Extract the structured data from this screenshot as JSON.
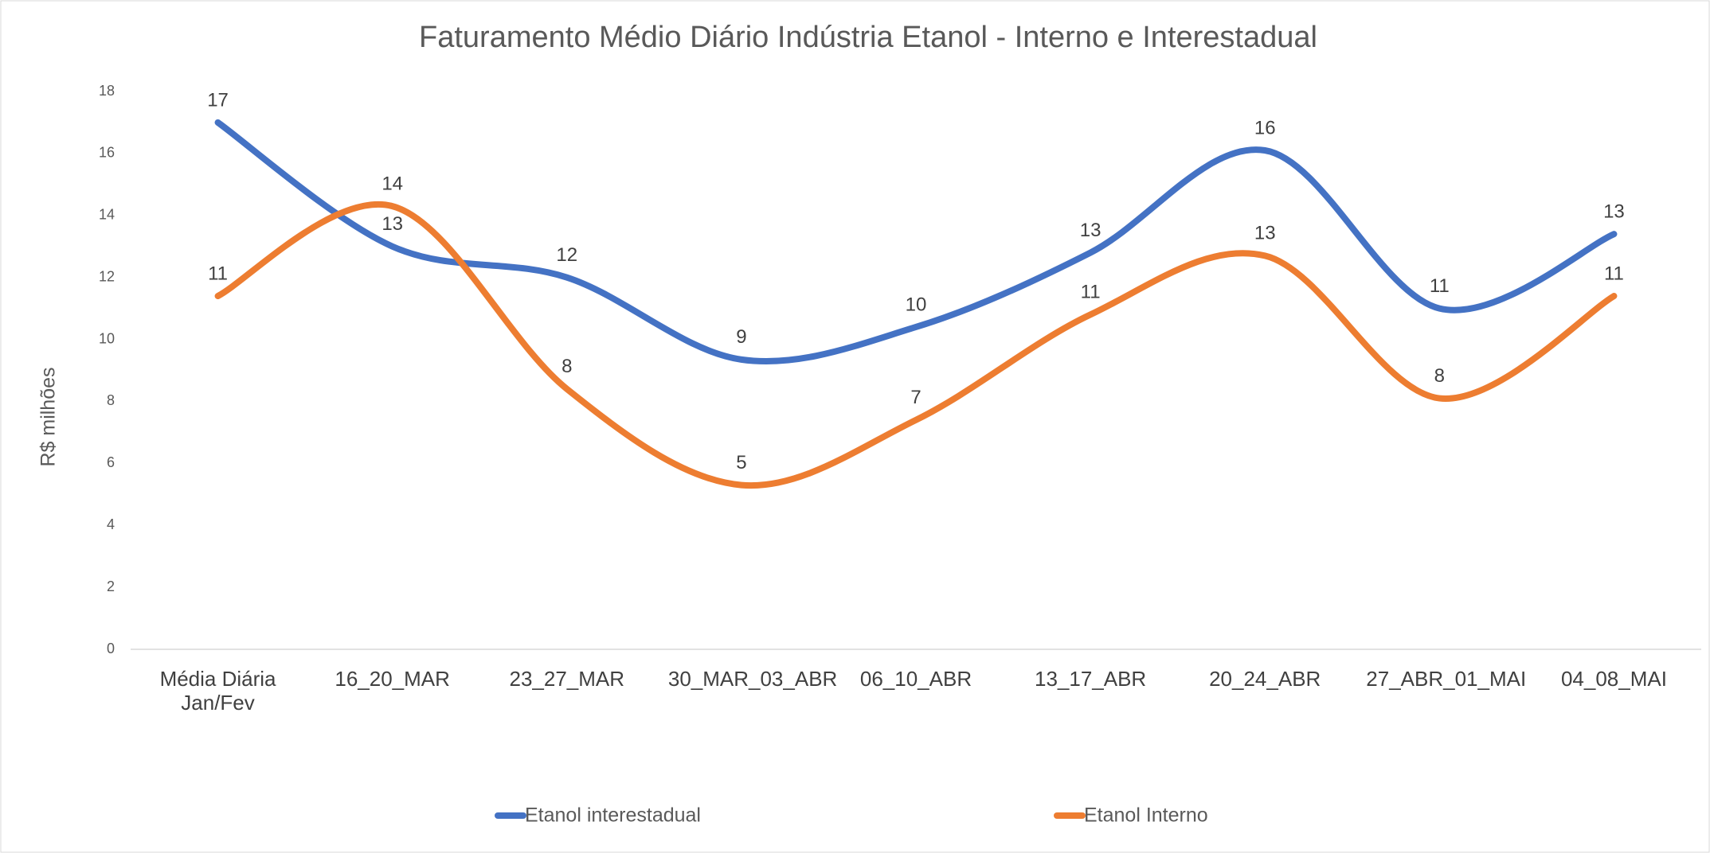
{
  "chart_data": {
    "type": "line",
    "title": "Faturamento Médio Diário Indústria Etanol - Interno e Interestadual",
    "y_label": "R$ milhões",
    "categories": [
      "Média Diária Jan/Fev",
      "16_20_MAR",
      "23_27_MAR",
      "30_MAR_03_ABR",
      "06_10_ABR",
      "13_17_ABR",
      "20_24_ABR",
      "27_ABR_01_MAI",
      "04_08_MAI"
    ],
    "series": [
      {
        "name": "Etanol interestadual",
        "color": "#4472c4",
        "values": [
          17.0,
          13.0,
          12.0,
          9.35,
          10.4,
          12.8,
          16.1,
          11.0,
          13.4
        ],
        "value_labels": [
          "17",
          "13",
          "12",
          "9",
          "10",
          "13",
          "16",
          "11",
          "13"
        ]
      },
      {
        "name": "Etanol Interno",
        "color": "#ed7d31",
        "values": [
          11.4,
          14.3,
          8.4,
          5.3,
          7.4,
          10.8,
          12.7,
          8.1,
          11.4
        ],
        "value_labels": [
          "11",
          "14",
          "8",
          "5",
          "7",
          "11",
          "13",
          "8",
          "11"
        ]
      }
    ],
    "ylim": [
      0,
      18
    ],
    "yticks": [
      0,
      2,
      4,
      6,
      8,
      10,
      12,
      14,
      16,
      18
    ],
    "grid": false,
    "legend": "bottom",
    "smooth": true
  }
}
